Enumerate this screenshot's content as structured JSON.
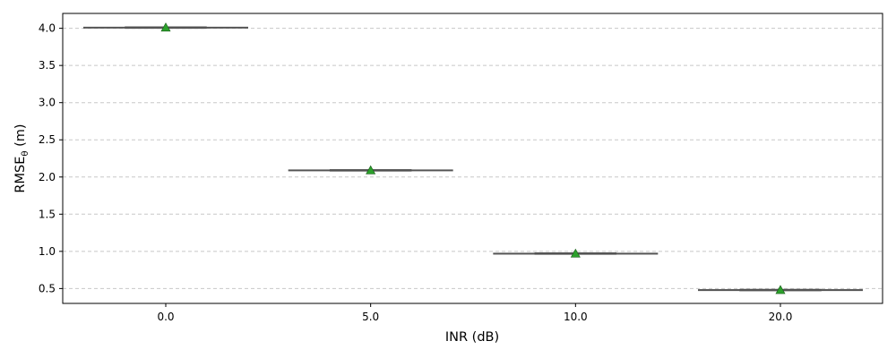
{
  "chart_data": {
    "type": "box",
    "xlabel": "INR (dB)",
    "ylabel": {
      "main": "RMSE",
      "subscript": "θ",
      "unit": " (m)"
    },
    "categories": [
      "0.0",
      "5.0",
      "10.0",
      "20.0"
    ],
    "ylim": [
      0.3,
      4.2
    ],
    "yticks": [
      0.5,
      1.0,
      1.5,
      2.0,
      2.5,
      3.0,
      3.5,
      4.0
    ],
    "ytick_labels": [
      "0.5",
      "1.0",
      "1.5",
      "2.0",
      "2.5",
      "3.0",
      "3.5",
      "4.0"
    ],
    "grid": {
      "axis": "y",
      "style": "dashed"
    },
    "boxes": [
      {
        "category": "0.0",
        "median": 4.01,
        "q1": 4.005,
        "q3": 4.015,
        "whisker_low": 4.0,
        "whisker_high": 4.02,
        "mean": 4.01
      },
      {
        "category": "5.0",
        "median": 2.09,
        "q1": 2.085,
        "q3": 2.095,
        "whisker_low": 2.08,
        "whisker_high": 2.1,
        "mean": 2.09
      },
      {
        "category": "10.0",
        "median": 0.97,
        "q1": 0.965,
        "q3": 0.975,
        "whisker_low": 0.96,
        "whisker_high": 0.98,
        "mean": 0.97
      },
      {
        "category": "20.0",
        "median": 0.48,
        "q1": 0.475,
        "q3": 0.485,
        "whisker_low": 0.47,
        "whisker_high": 0.49,
        "mean": 0.48
      }
    ],
    "colors": {
      "box": "#555555",
      "mean_marker": "#2ca02c",
      "grid": "#c8c8c8"
    }
  }
}
